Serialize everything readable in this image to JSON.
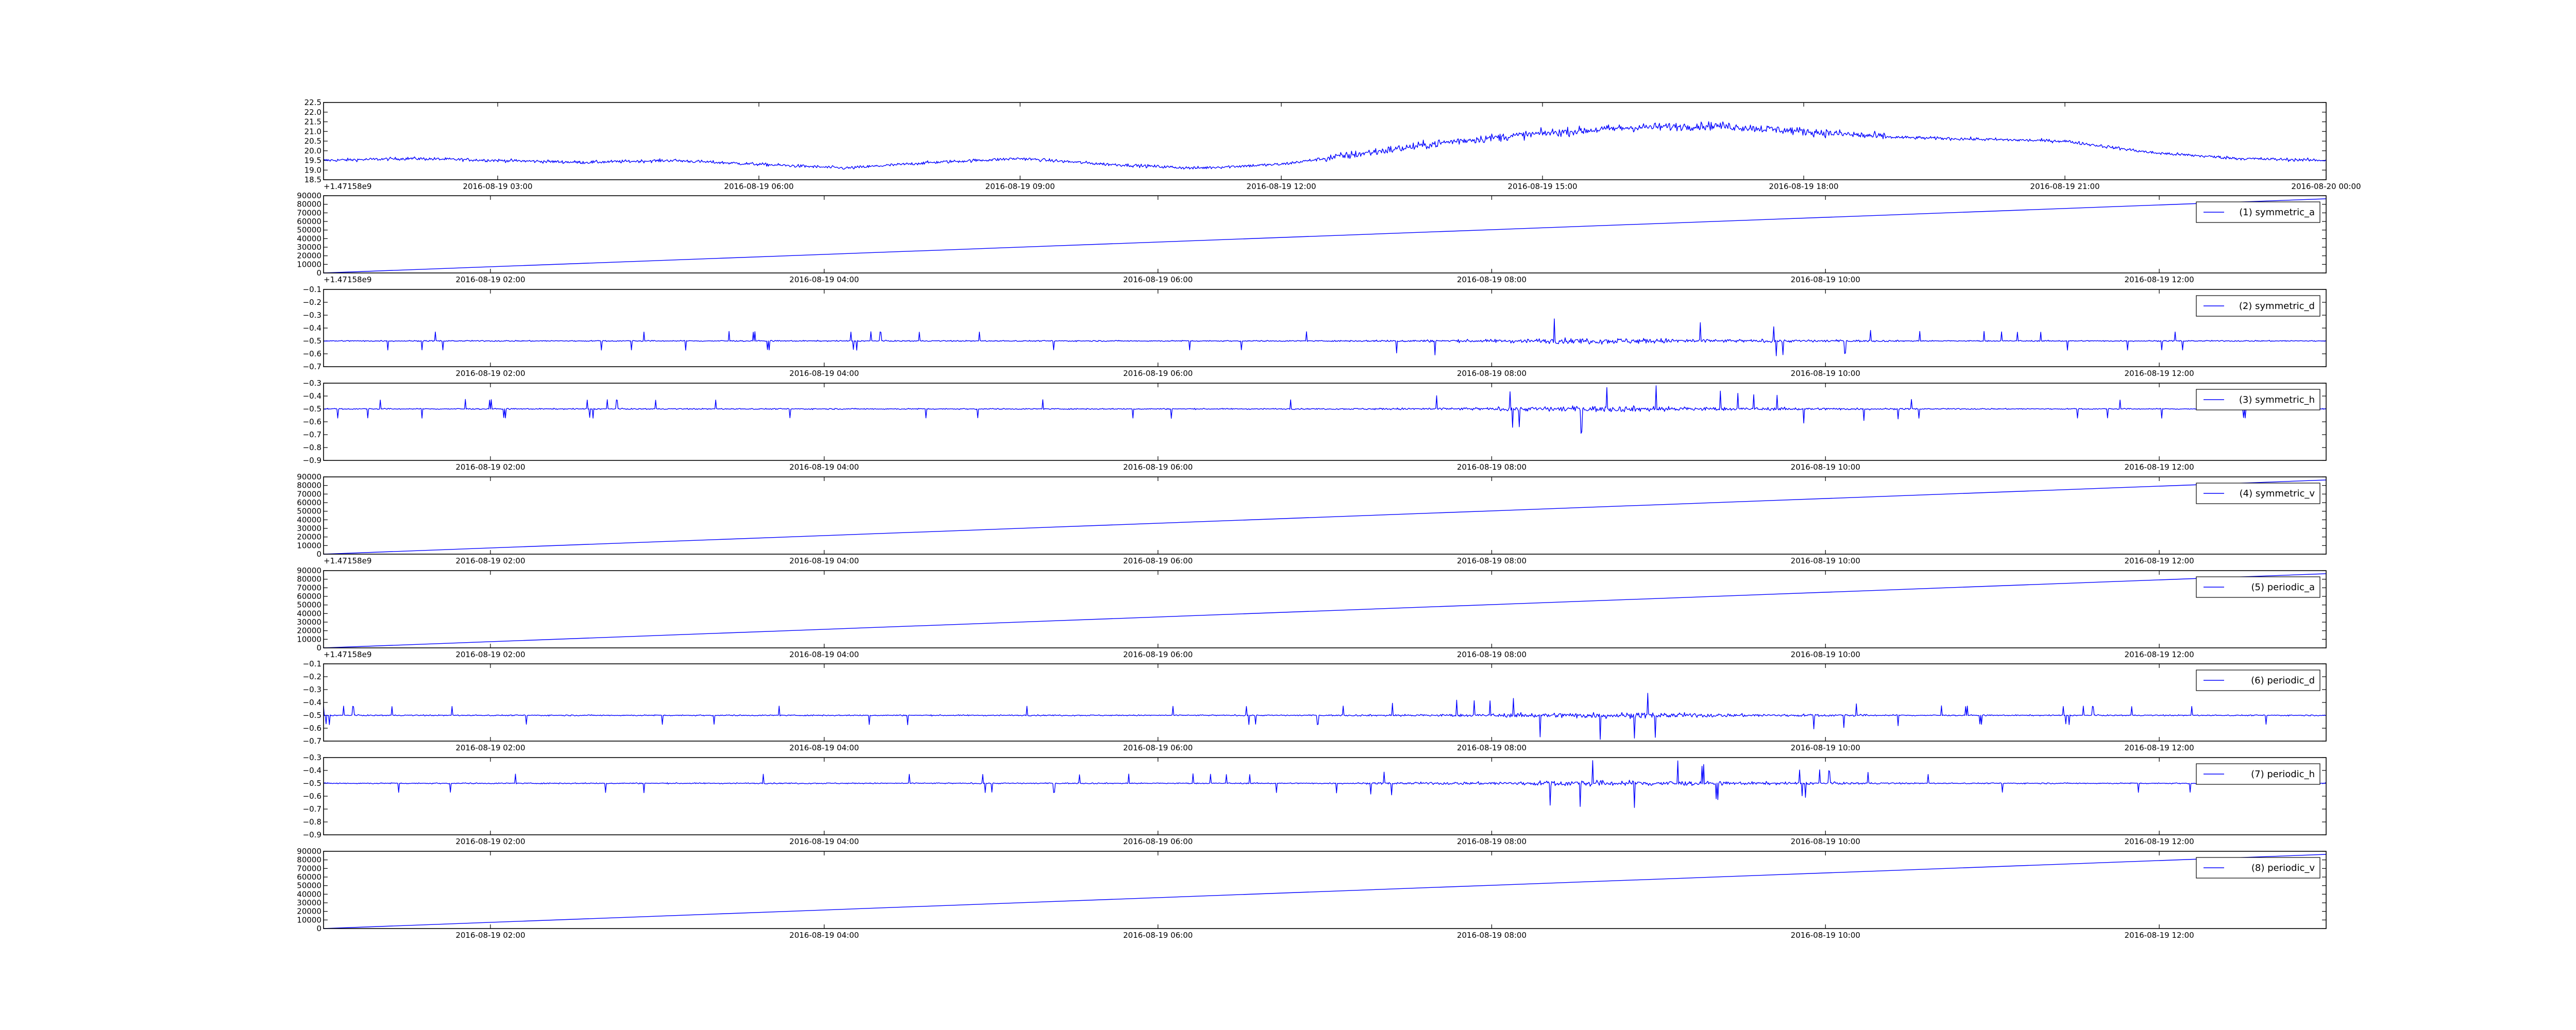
{
  "colors": {
    "series": "#0000ff",
    "axes": "#000000",
    "background": "#ffffff"
  },
  "chart_data": [
    {
      "type": "line",
      "title": "",
      "xlabel": "",
      "ylabel": "",
      "grid": false,
      "x_type": "datetime",
      "xlim": [
        "2016-08-19 01:00",
        "2016-08-20 00:00"
      ],
      "ylim": [
        18.5,
        22.5
      ],
      "y_ticks": [
        "18.5",
        "19.0",
        "19.5",
        "20.0",
        "20.5",
        "21.0",
        "21.5",
        "22.0",
        "22.5"
      ],
      "x_ticks": [
        "2016-08-19 03:00",
        "2016-08-19 06:00",
        "2016-08-19 09:00",
        "2016-08-19 12:00",
        "2016-08-19 15:00",
        "2016-08-19 18:00",
        "2016-08-19 21:00",
        "2016-08-20 00:00"
      ],
      "y_offset_label": "+1.47158e9",
      "legend": null,
      "noisy": true,
      "series": [
        {
          "name": "",
          "points": [
            [
              "2016-08-19 01:00",
              19.5
            ],
            [
              "2016-08-19 02:00",
              19.6
            ],
            [
              "2016-08-19 03:00",
              19.5
            ],
            [
              "2016-08-19 04:00",
              19.4
            ],
            [
              "2016-08-19 05:00",
              19.5
            ],
            [
              "2016-08-19 06:00",
              19.3
            ],
            [
              "2016-08-19 07:00",
              19.1
            ],
            [
              "2016-08-19 08:00",
              19.4
            ],
            [
              "2016-08-19 09:00",
              19.6
            ],
            [
              "2016-08-19 10:00",
              19.3
            ],
            [
              "2016-08-19 11:00",
              19.1
            ],
            [
              "2016-08-19 12:00",
              19.3
            ],
            [
              "2016-08-19 13:00",
              19.9
            ],
            [
              "2016-08-19 14:00",
              20.5
            ],
            [
              "2016-08-19 15:00",
              20.9
            ],
            [
              "2016-08-19 16:00",
              21.2
            ],
            [
              "2016-08-19 17:00",
              21.3
            ],
            [
              "2016-08-19 18:00",
              21.0
            ],
            [
              "2016-08-19 19:00",
              20.7
            ],
            [
              "2016-08-19 20:00",
              20.6
            ],
            [
              "2016-08-19 21:00",
              20.5
            ],
            [
              "2016-08-19 22:00",
              19.9
            ],
            [
              "2016-08-19 23:00",
              19.6
            ],
            [
              "2016-08-20 00:00",
              19.5
            ]
          ]
        }
      ]
    },
    {
      "type": "line",
      "title": "",
      "xlabel": "",
      "ylabel": "",
      "grid": false,
      "x_type": "datetime",
      "xlim": [
        "2016-08-19 01:00",
        "2016-08-19 13:00"
      ],
      "ylim": [
        0,
        90000
      ],
      "y_ticks": [
        "0",
        "10000",
        "20000",
        "30000",
        "40000",
        "50000",
        "60000",
        "70000",
        "80000",
        "90000"
      ],
      "x_ticks": [
        "2016-08-19 02:00",
        "2016-08-19 04:00",
        "2016-08-19 06:00",
        "2016-08-19 08:00",
        "2016-08-19 10:00",
        "2016-08-19 12:00"
      ],
      "y_offset_label": "+1.47158e9",
      "legend": "top-right",
      "noisy": false,
      "series": [
        {
          "name": "(1) symmetric_a",
          "points": [
            [
              "2016-08-19 01:00",
              0
            ],
            [
              "2016-08-19 13:00",
              86400
            ]
          ]
        }
      ]
    },
    {
      "type": "line",
      "title": "",
      "xlabel": "",
      "ylabel": "",
      "grid": false,
      "x_type": "datetime",
      "xlim": [
        "2016-08-19 01:00",
        "2016-08-19 13:00"
      ],
      "ylim": [
        -0.7,
        -0.1
      ],
      "y_ticks": [
        "−0.7",
        "−0.6",
        "−0.5",
        "−0.4",
        "−0.3",
        "−0.2",
        "−0.1"
      ],
      "x_ticks": [
        "2016-08-19 02:00",
        "2016-08-19 04:00",
        "2016-08-19 06:00",
        "2016-08-19 08:00",
        "2016-08-19 10:00",
        "2016-08-19 12:00"
      ],
      "y_offset_label": "",
      "legend": "top-right",
      "noisy": true,
      "series": [
        {
          "name": "(2) symmetric_d",
          "points": [
            [
              "2016-08-19 01:00",
              -0.5
            ],
            [
              "2016-08-19 13:00",
              -0.5
            ]
          ]
        }
      ]
    },
    {
      "type": "line",
      "title": "",
      "xlabel": "",
      "ylabel": "",
      "grid": false,
      "x_type": "datetime",
      "xlim": [
        "2016-08-19 01:00",
        "2016-08-19 13:00"
      ],
      "ylim": [
        -0.9,
        -0.3
      ],
      "y_ticks": [
        "−0.9",
        "−0.8",
        "−0.7",
        "−0.6",
        "−0.5",
        "−0.4",
        "−0.3"
      ],
      "x_ticks": [
        "2016-08-19 02:00",
        "2016-08-19 04:00",
        "2016-08-19 06:00",
        "2016-08-19 08:00",
        "2016-08-19 10:00",
        "2016-08-19 12:00"
      ],
      "y_offset_label": "",
      "legend": "top-right",
      "noisy": true,
      "series": [
        {
          "name": "(3) symmetric_h",
          "points": [
            [
              "2016-08-19 01:00",
              -0.5
            ],
            [
              "2016-08-19 13:00",
              -0.5
            ]
          ]
        }
      ]
    },
    {
      "type": "line",
      "title": "",
      "xlabel": "",
      "ylabel": "",
      "grid": false,
      "x_type": "datetime",
      "xlim": [
        "2016-08-19 01:00",
        "2016-08-19 13:00"
      ],
      "ylim": [
        0,
        90000
      ],
      "y_ticks": [
        "0",
        "10000",
        "20000",
        "30000",
        "40000",
        "50000",
        "60000",
        "70000",
        "80000",
        "90000"
      ],
      "x_ticks": [
        "2016-08-19 02:00",
        "2016-08-19 04:00",
        "2016-08-19 06:00",
        "2016-08-19 08:00",
        "2016-08-19 10:00",
        "2016-08-19 12:00"
      ],
      "y_offset_label": "+1.47158e9",
      "legend": "top-right",
      "noisy": false,
      "series": [
        {
          "name": "(4) symmetric_v",
          "points": [
            [
              "2016-08-19 01:00",
              0
            ],
            [
              "2016-08-19 13:00",
              86400
            ]
          ]
        }
      ]
    },
    {
      "type": "line",
      "title": "",
      "xlabel": "",
      "ylabel": "",
      "grid": false,
      "x_type": "datetime",
      "xlim": [
        "2016-08-19 01:00",
        "2016-08-19 13:00"
      ],
      "ylim": [
        0,
        90000
      ],
      "y_ticks": [
        "0",
        "10000",
        "20000",
        "30000",
        "40000",
        "50000",
        "60000",
        "70000",
        "80000",
        "90000"
      ],
      "x_ticks": [
        "2016-08-19 02:00",
        "2016-08-19 04:00",
        "2016-08-19 06:00",
        "2016-08-19 08:00",
        "2016-08-19 10:00",
        "2016-08-19 12:00"
      ],
      "y_offset_label": "+1.47158e9",
      "legend": "top-right",
      "noisy": false,
      "series": [
        {
          "name": "(5) periodic_a",
          "points": [
            [
              "2016-08-19 01:00",
              0
            ],
            [
              "2016-08-19 13:00",
              86400
            ]
          ]
        }
      ]
    },
    {
      "type": "line",
      "title": "",
      "xlabel": "",
      "ylabel": "",
      "grid": false,
      "x_type": "datetime",
      "xlim": [
        "2016-08-19 01:00",
        "2016-08-19 13:00"
      ],
      "ylim": [
        -0.7,
        -0.1
      ],
      "y_ticks": [
        "−0.7",
        "−0.6",
        "−0.5",
        "−0.4",
        "−0.3",
        "−0.2",
        "−0.1"
      ],
      "x_ticks": [
        "2016-08-19 02:00",
        "2016-08-19 04:00",
        "2016-08-19 06:00",
        "2016-08-19 08:00",
        "2016-08-19 10:00",
        "2016-08-19 12:00"
      ],
      "y_offset_label": "",
      "legend": "top-right",
      "noisy": true,
      "series": [
        {
          "name": "(6) periodic_d",
          "points": [
            [
              "2016-08-19 01:00",
              -0.5
            ],
            [
              "2016-08-19 13:00",
              -0.5
            ]
          ]
        }
      ]
    },
    {
      "type": "line",
      "title": "",
      "xlabel": "",
      "ylabel": "",
      "grid": false,
      "x_type": "datetime",
      "xlim": [
        "2016-08-19 01:00",
        "2016-08-19 13:00"
      ],
      "ylim": [
        -0.9,
        -0.3
      ],
      "y_ticks": [
        "−0.9",
        "−0.8",
        "−0.7",
        "−0.6",
        "−0.5",
        "−0.4",
        "−0.3"
      ],
      "x_ticks": [
        "2016-08-19 02:00",
        "2016-08-19 04:00",
        "2016-08-19 06:00",
        "2016-08-19 08:00",
        "2016-08-19 10:00",
        "2016-08-19 12:00"
      ],
      "y_offset_label": "",
      "legend": "top-right",
      "noisy": true,
      "series": [
        {
          "name": "(7) periodic_h",
          "points": [
            [
              "2016-08-19 01:00",
              -0.5
            ],
            [
              "2016-08-19 13:00",
              -0.5
            ]
          ]
        }
      ]
    },
    {
      "type": "line",
      "title": "",
      "xlabel": "",
      "ylabel": "",
      "grid": false,
      "x_type": "datetime",
      "xlim": [
        "2016-08-19 01:00",
        "2016-08-19 13:00"
      ],
      "ylim": [
        0,
        90000
      ],
      "y_ticks": [
        "0",
        "10000",
        "20000",
        "30000",
        "40000",
        "50000",
        "60000",
        "70000",
        "80000",
        "90000"
      ],
      "x_ticks": [
        "2016-08-19 02:00",
        "2016-08-19 04:00",
        "2016-08-19 06:00",
        "2016-08-19 08:00",
        "2016-08-19 10:00",
        "2016-08-19 12:00"
      ],
      "y_offset_label": "",
      "legend": "top-right",
      "noisy": false,
      "series": [
        {
          "name": "(8) periodic_v",
          "points": [
            [
              "2016-08-19 01:00",
              0
            ],
            [
              "2016-08-19 13:00",
              86400
            ]
          ]
        }
      ]
    }
  ]
}
